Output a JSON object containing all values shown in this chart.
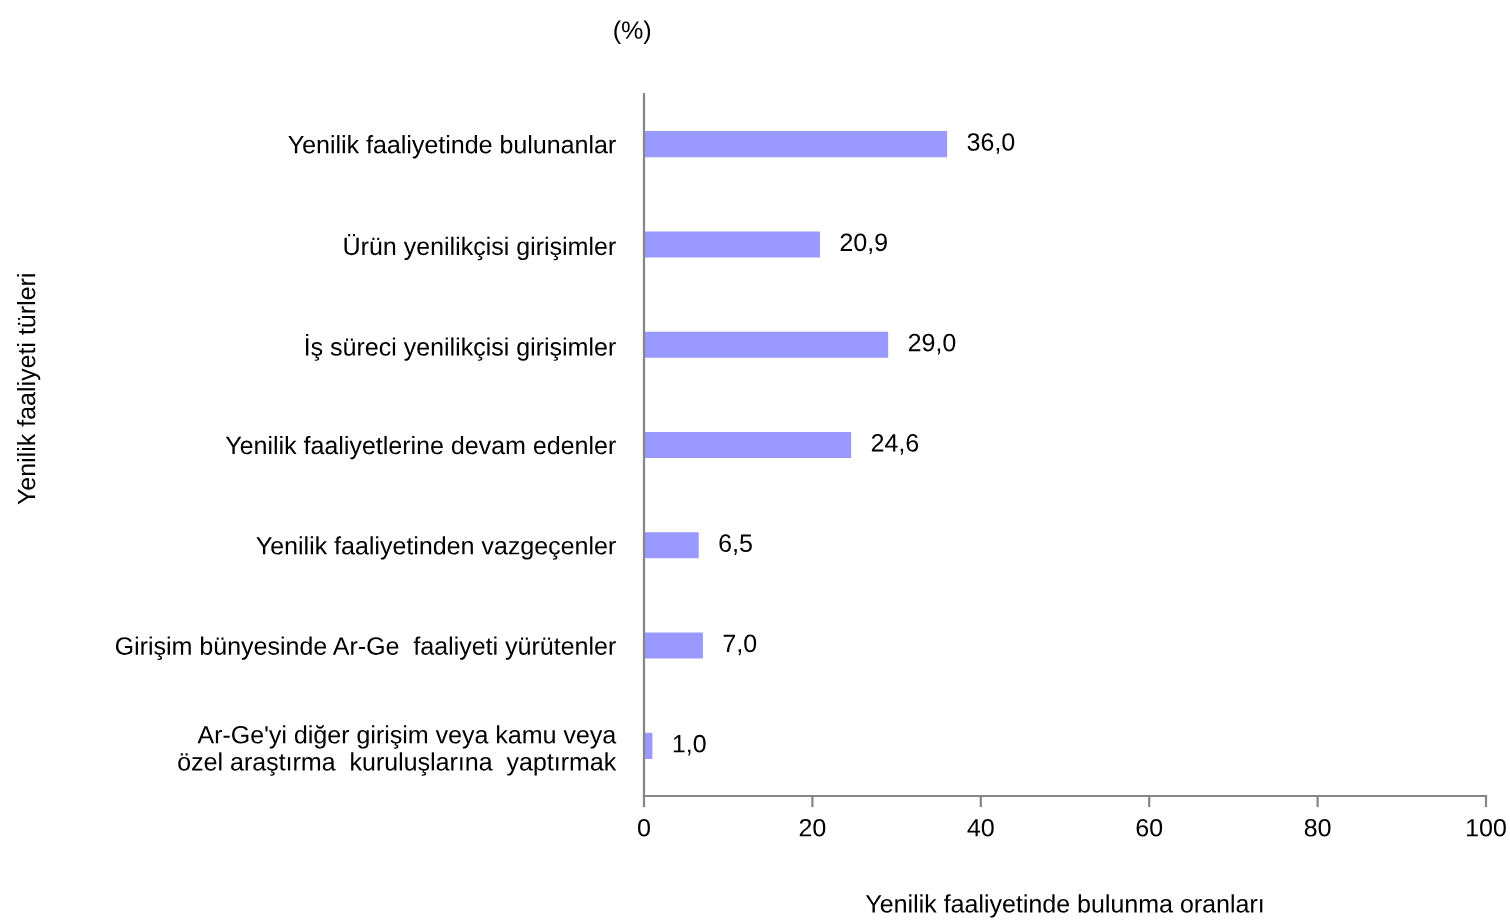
{
  "chart_data": {
    "type": "bar",
    "orientation": "horizontal",
    "title": "(%)",
    "xlabel": "Yenilik faaliyetinde bulunma oranları",
    "ylabel": "Yenilik faaliyeti türleri",
    "categories": [
      "Yenilik faaliyetinde bulunanlar",
      "Ürün yenilikçisi girişimler",
      "İş süreci yenilikçisi girişimler",
      "Yenilik faaliyetlerine devam edenler",
      "Yenilik faaliyetinden vazgeçenler",
      "Girişim bünyesinde Ar-Ge  faaliyeti yürütenler",
      "Ar-Ge'yi diğer girişim veya kamu veya\nözel araştırma  kuruluşlarına  yaptırmak"
    ],
    "values": [
      36.0,
      20.9,
      29.0,
      24.6,
      6.5,
      7.0,
      1.0
    ],
    "value_labels": [
      "36,0",
      "20,9",
      "29,0",
      "24,6",
      "6,5",
      "7,0",
      "1,0"
    ],
    "color": "#9999ff",
    "xlim": [
      0,
      100
    ],
    "xticks": [
      0,
      20,
      40,
      60,
      80,
      100
    ]
  }
}
